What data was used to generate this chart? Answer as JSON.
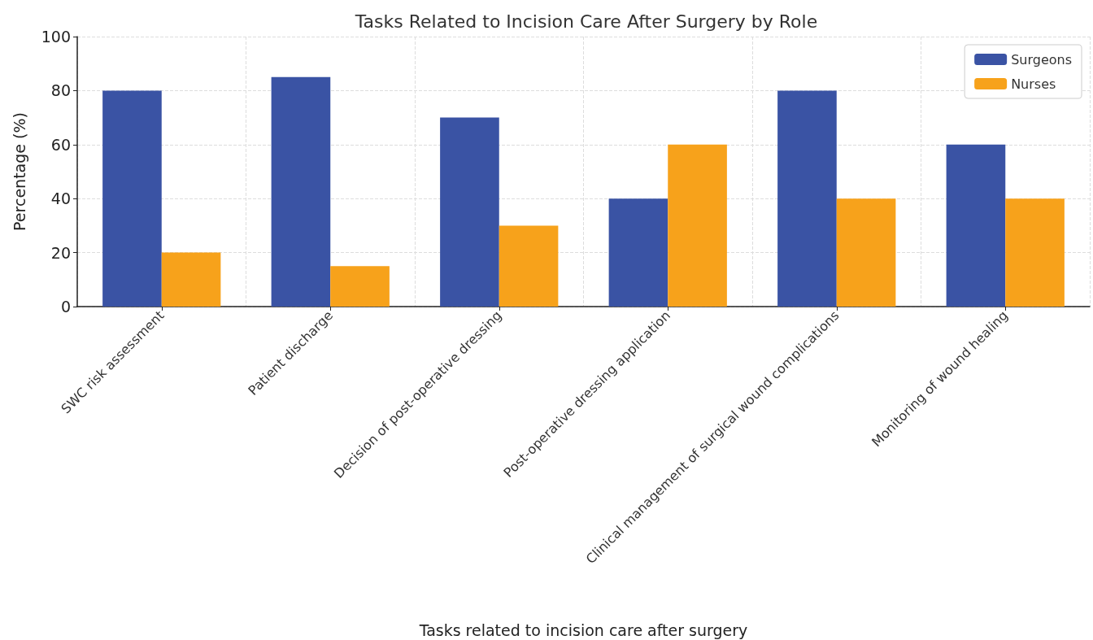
{
  "chart_data": {
    "type": "bar",
    "title": "Tasks Related to Incision Care After Surgery by Role",
    "xlabel": "Tasks related to incision care after surgery",
    "ylabel": "Percentage (%)",
    "categories": [
      "SWC risk assessment",
      "Patient discharge",
      "Decision of post-operative dressing",
      "Post-operative dressing application",
      "Clinical management of surgical wound complications",
      "Monitoring of wound healing"
    ],
    "series": [
      {
        "name": "Surgeons",
        "color": "#3a53a4",
        "values": [
          80,
          85,
          70,
          40,
          80,
          60
        ]
      },
      {
        "name": "Nurses",
        "color": "#f7a21b",
        "values": [
          20,
          15,
          30,
          60,
          40,
          40
        ]
      }
    ],
    "ylim": [
      0,
      100
    ],
    "yticks": [
      0,
      20,
      40,
      60,
      80,
      100
    ],
    "grid": true,
    "legend": "top right"
  }
}
